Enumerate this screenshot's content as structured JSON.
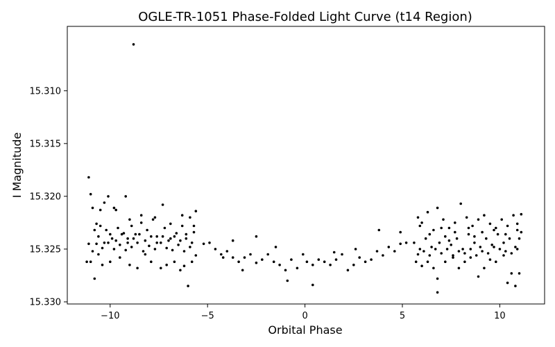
{
  "chart_data": {
    "type": "scatter",
    "title": "OGLE-TR-1051 Phase-Folded Light Curve (t14 Region)",
    "xlabel": "Orbital Phase",
    "ylabel": "I Magnitude",
    "xlim": [
      -12.2,
      12.3
    ],
    "ylim": [
      15.3302,
      15.3039
    ],
    "y_inverted": true,
    "x_ticks": [
      -10,
      -5,
      0,
      5,
      10
    ],
    "y_ticks": [
      15.31,
      15.315,
      15.32,
      15.325,
      15.33
    ],
    "x_tick_labels": [
      "−10",
      "−5",
      "0",
      "5",
      "10"
    ],
    "y_tick_labels": [
      "15.310",
      "15.315",
      "15.320",
      "15.325",
      "15.330"
    ],
    "grid": false,
    "marker_color": "#000000",
    "series": [
      {
        "points": [
          [
            -11.1,
            15.3182
          ],
          [
            -11.0,
            15.3198
          ],
          [
            -10.9,
            15.3211
          ],
          [
            -11.2,
            15.3262
          ],
          [
            -11.1,
            15.3245
          ],
          [
            -10.8,
            15.3278
          ],
          [
            -10.7,
            15.3226
          ],
          [
            -10.5,
            15.3213
          ],
          [
            -10.3,
            15.3206
          ],
          [
            -10.1,
            15.32
          ],
          [
            -9.8,
            15.3211
          ],
          [
            -9.7,
            15.3213
          ],
          [
            -9.2,
            15.32
          ],
          [
            -8.8,
            15.3056
          ],
          [
            -7.3,
            15.3208
          ],
          [
            -6.0,
            15.3285
          ],
          [
            -10.4,
            15.3265
          ],
          [
            -10.0,
            15.3262
          ],
          [
            -9.5,
            15.3258
          ],
          [
            -9.0,
            15.3265
          ],
          [
            -8.6,
            15.3268
          ],
          [
            -8.2,
            15.3255
          ],
          [
            -7.9,
            15.3262
          ],
          [
            -7.4,
            15.3268
          ],
          [
            -7.1,
            15.3265
          ],
          [
            -6.7,
            15.3262
          ],
          [
            -6.4,
            15.327
          ],
          [
            -6.2,
            15.3266
          ],
          [
            -5.8,
            15.3262
          ],
          [
            -5.6,
            15.3256
          ],
          [
            -10.6,
            15.3238
          ],
          [
            -10.2,
            15.3232
          ],
          [
            -9.9,
            15.324
          ],
          [
            -9.6,
            15.323
          ],
          [
            -9.3,
            15.3235
          ],
          [
            -9.1,
            15.324
          ],
          [
            -8.9,
            15.3228
          ],
          [
            -8.7,
            15.3236
          ],
          [
            -8.4,
            15.3225
          ],
          [
            -8.1,
            15.3232
          ],
          [
            -7.8,
            15.3222
          ],
          [
            -7.6,
            15.3238
          ],
          [
            -7.2,
            15.323
          ],
          [
            -6.9,
            15.324
          ],
          [
            -6.6,
            15.3235
          ],
          [
            -6.3,
            15.3228
          ],
          [
            -6.1,
            15.324
          ],
          [
            -5.9,
            15.322
          ],
          [
            -5.7,
            15.3234
          ],
          [
            -5.6,
            15.3214
          ],
          [
            -10.9,
            15.3252
          ],
          [
            -10.7,
            15.3245
          ],
          [
            -10.4,
            15.3249
          ],
          [
            -10.1,
            15.3244
          ],
          [
            -9.8,
            15.325
          ],
          [
            -9.5,
            15.3246
          ],
          [
            -9.2,
            15.3251
          ],
          [
            -8.9,
            15.3248
          ],
          [
            -8.6,
            15.3244
          ],
          [
            -8.3,
            15.3252
          ],
          [
            -8.0,
            15.3247
          ],
          [
            -7.7,
            15.325
          ],
          [
            -7.4,
            15.3244
          ],
          [
            -7.1,
            15.3249
          ],
          [
            -6.8,
            15.3251
          ],
          [
            -6.5,
            15.3246
          ],
          [
            -6.2,
            15.3252
          ],
          [
            -5.9,
            15.3248
          ],
          [
            -5.2,
            15.3245
          ],
          [
            -4.9,
            15.3244
          ],
          [
            -4.6,
            15.325
          ],
          [
            -4.3,
            15.3255
          ],
          [
            -4.0,
            15.3252
          ],
          [
            -3.7,
            15.3258
          ],
          [
            -3.4,
            15.3262
          ],
          [
            -3.1,
            15.3258
          ],
          [
            -2.8,
            15.3255
          ],
          [
            -2.5,
            15.3263
          ],
          [
            -2.2,
            15.326
          ],
          [
            -1.9,
            15.3255
          ],
          [
            -1.6,
            15.3262
          ],
          [
            -1.3,
            15.3265
          ],
          [
            -1.0,
            15.327
          ],
          [
            -0.7,
            15.326
          ],
          [
            -0.4,
            15.3268
          ],
          [
            -0.1,
            15.3255
          ],
          [
            0.1,
            15.3262
          ],
          [
            0.4,
            15.3265
          ],
          [
            0.7,
            15.326
          ],
          [
            1.0,
            15.3262
          ],
          [
            1.3,
            15.3265
          ],
          [
            1.6,
            15.326
          ],
          [
            1.9,
            15.3255
          ],
          [
            2.2,
            15.327
          ],
          [
            2.5,
            15.3265
          ],
          [
            2.8,
            15.3258
          ],
          [
            3.1,
            15.3262
          ],
          [
            3.4,
            15.326
          ],
          [
            3.7,
            15.3252
          ],
          [
            4.0,
            15.3256
          ],
          [
            4.3,
            15.3248
          ],
          [
            4.6,
            15.3252
          ],
          [
            4.9,
            15.3245
          ],
          [
            5.2,
            15.3244
          ],
          [
            -3.2,
            15.327
          ],
          [
            -0.9,
            15.328
          ],
          [
            0.4,
            15.3284
          ],
          [
            -2.5,
            15.3238
          ],
          [
            -3.7,
            15.3242
          ],
          [
            3.8,
            15.3232
          ],
          [
            4.9,
            15.3234
          ],
          [
            -4.2,
            15.3258
          ],
          [
            -1.5,
            15.3248
          ],
          [
            1.5,
            15.3253
          ],
          [
            2.6,
            15.325
          ],
          [
            5.8,
            15.322
          ],
          [
            6.0,
            15.3225
          ],
          [
            6.3,
            15.3215
          ],
          [
            6.6,
            15.3232
          ],
          [
            6.8,
            15.3211
          ],
          [
            7.1,
            15.3222
          ],
          [
            7.4,
            15.323
          ],
          [
            7.7,
            15.3225
          ],
          [
            8.0,
            15.3207
          ],
          [
            8.3,
            15.322
          ],
          [
            8.6,
            15.3228
          ],
          [
            8.9,
            15.3222
          ],
          [
            9.2,
            15.3218
          ],
          [
            9.5,
            15.3226
          ],
          [
            9.8,
            15.323
          ],
          [
            10.1,
            15.3222
          ],
          [
            10.4,
            15.3228
          ],
          [
            10.7,
            15.3218
          ],
          [
            11.1,
            15.3217
          ],
          [
            10.9,
            15.3232
          ],
          [
            5.7,
            15.3262
          ],
          [
            6.0,
            15.3266
          ],
          [
            6.3,
            15.3262
          ],
          [
            6.6,
            15.3268
          ],
          [
            6.8,
            15.3278
          ],
          [
            6.8,
            15.3291
          ],
          [
            7.2,
            15.3262
          ],
          [
            7.6,
            15.3258
          ],
          [
            7.9,
            15.3268
          ],
          [
            8.2,
            15.3262
          ],
          [
            8.5,
            15.3258
          ],
          [
            8.9,
            15.3276
          ],
          [
            9.2,
            15.3268
          ],
          [
            9.5,
            15.326
          ],
          [
            9.8,
            15.3262
          ],
          [
            10.2,
            15.3256
          ],
          [
            10.4,
            15.3282
          ],
          [
            10.6,
            15.3273
          ],
          [
            10.8,
            15.3285
          ],
          [
            11.0,
            15.3273
          ],
          [
            5.6,
            15.3244
          ],
          [
            5.9,
            15.325
          ],
          [
            6.2,
            15.324
          ],
          [
            6.5,
            15.3248
          ],
          [
            6.9,
            15.3244
          ],
          [
            7.2,
            15.3238
          ],
          [
            7.5,
            15.3246
          ],
          [
            7.8,
            15.324
          ],
          [
            8.1,
            15.325
          ],
          [
            8.4,
            15.3236
          ],
          [
            8.7,
            15.3244
          ],
          [
            9.0,
            15.3248
          ],
          [
            9.3,
            15.324
          ],
          [
            9.6,
            15.3246
          ],
          [
            9.9,
            15.3236
          ],
          [
            10.2,
            15.3244
          ],
          [
            10.5,
            15.324
          ],
          [
            10.8,
            15.3248
          ],
          [
            11.0,
            15.324
          ],
          [
            11.1,
            15.3234
          ],
          [
            5.8,
            15.3255
          ],
          [
            6.1,
            15.3252
          ],
          [
            6.4,
            15.3256
          ],
          [
            6.7,
            15.325
          ],
          [
            7.0,
            15.3254
          ],
          [
            7.3,
            15.325
          ],
          [
            7.6,
            15.3256
          ],
          [
            7.9,
            15.3252
          ],
          [
            8.2,
            15.3254
          ],
          [
            8.5,
            15.325
          ],
          [
            8.8,
            15.3256
          ],
          [
            9.1,
            15.3252
          ],
          [
            9.4,
            15.3254
          ],
          [
            9.7,
            15.3248
          ],
          [
            10.0,
            15.325
          ],
          [
            10.3,
            15.3252
          ],
          [
            10.6,
            15.3254
          ],
          [
            10.9,
            15.325
          ],
          [
            -11.0,
            15.3262
          ],
          [
            -10.6,
            15.3255
          ],
          [
            -10.8,
            15.3232
          ],
          [
            -10.5,
            15.3228
          ],
          [
            -10.3,
            15.3244
          ],
          [
            -10.0,
            15.3236
          ],
          [
            -9.7,
            15.3242
          ],
          [
            -9.4,
            15.3236
          ],
          [
            -9.1,
            15.3244
          ],
          [
            -8.8,
            15.324
          ],
          [
            -8.5,
            15.3236
          ],
          [
            -8.2,
            15.3242
          ],
          [
            -7.9,
            15.3238
          ],
          [
            -7.6,
            15.3244
          ],
          [
            -7.3,
            15.3238
          ],
          [
            -7.0,
            15.3242
          ],
          [
            -6.7,
            15.3238
          ],
          [
            -6.4,
            15.3242
          ],
          [
            -6.1,
            15.3236
          ],
          [
            -5.8,
            15.3244
          ],
          [
            -9.0,
            15.3222
          ],
          [
            -8.4,
            15.3218
          ],
          [
            -7.7,
            15.322
          ],
          [
            -6.9,
            15.3226
          ],
          [
            -6.3,
            15.3218
          ],
          [
            -5.7,
            15.3228
          ],
          [
            5.9,
            15.3228
          ],
          [
            6.4,
            15.3236
          ],
          [
            7.0,
            15.323
          ],
          [
            7.7,
            15.3234
          ],
          [
            8.4,
            15.323
          ],
          [
            9.1,
            15.3234
          ],
          [
            9.7,
            15.3232
          ],
          [
            10.3,
            15.3236
          ],
          [
            10.9,
            15.3226
          ],
          [
            7.4,
            15.3242
          ],
          [
            8.7,
            15.3238
          ]
        ]
      }
    ]
  }
}
